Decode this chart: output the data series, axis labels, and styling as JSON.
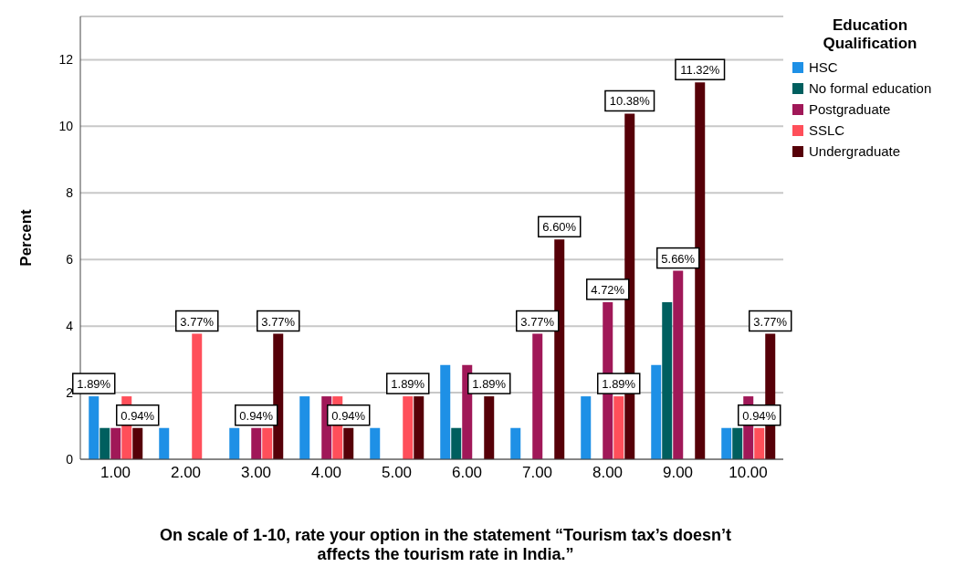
{
  "chart_data": {
    "type": "bar",
    "xlabel": "On scale of 1-10, rate your option in the statement “Tourism tax’s doesn’t affects the tourism rate in India.”",
    "ylabel": "Percent",
    "legend_title": "Education Qualification",
    "categories": [
      "1.00",
      "2.00",
      "3.00",
      "4.00",
      "5.00",
      "6.00",
      "7.00",
      "8.00",
      "9.00",
      "10.00"
    ],
    "series": [
      {
        "name": "HSC",
        "color": "#1e90e6",
        "values": [
          1.89,
          0.94,
          0.94,
          1.89,
          0.94,
          2.83,
          0.94,
          1.89,
          2.83,
          0.94
        ],
        "value_labels": [
          "1.89%",
          null,
          null,
          null,
          null,
          null,
          null,
          null,
          null,
          null
        ]
      },
      {
        "name": "No formal education",
        "color": "#005f5f",
        "values": [
          0.94,
          null,
          null,
          null,
          null,
          0.94,
          null,
          null,
          4.72,
          0.94
        ]
      },
      {
        "name": "Postgraduate",
        "color": "#a01858",
        "values": [
          0.94,
          null,
          0.94,
          1.89,
          null,
          2.83,
          3.77,
          4.72,
          5.66,
          1.89
        ],
        "value_labels": [
          null,
          null,
          "0.94%",
          null,
          null,
          null,
          "3.77%",
          "4.72%",
          "5.66%",
          null
        ]
      },
      {
        "name": "SSLC",
        "color": "#ff4f5a",
        "values": [
          1.89,
          3.77,
          0.94,
          1.89,
          1.89,
          null,
          null,
          1.89,
          null,
          0.94
        ],
        "value_labels": [
          null,
          "3.77%",
          null,
          null,
          "1.89%",
          null,
          null,
          "1.89%",
          null,
          "0.94%"
        ]
      },
      {
        "name": "Undergraduate",
        "color": "#560008",
        "values": [
          0.94,
          null,
          3.77,
          0.94,
          1.89,
          1.89,
          6.6,
          10.38,
          11.32,
          3.77
        ],
        "value_labels": [
          "0.94%",
          null,
          "3.77%",
          "0.94%",
          null,
          "1.89%",
          "6.60%",
          "10.38%",
          "11.32%",
          "3.77%"
        ]
      }
    ],
    "ylim": [
      0,
      13.3
    ],
    "yticks": [
      0,
      2,
      4,
      6,
      8,
      10,
      12
    ],
    "grid": "y",
    "legend": "top right"
  }
}
